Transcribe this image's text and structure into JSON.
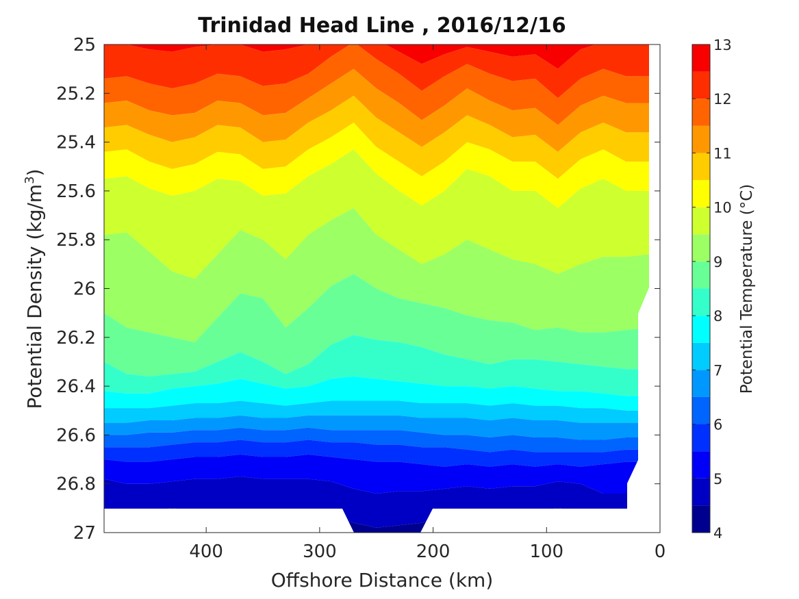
{
  "chart_data": {
    "type": "contour",
    "title": "Trinidad Head Line , 2016/12/16",
    "xlabel": "Offshore Distance (km)",
    "ylabel": "Potential Density (kg/m³)",
    "ylabel_main": "Potential Density (kg/m",
    "ylabel_sup": "3",
    "ylabel_end": ")",
    "xlim": [
      490,
      0
    ],
    "ylim": [
      25,
      27
    ],
    "y_reversed": true,
    "x_ticks": [
      400,
      300,
      200,
      100,
      0
    ],
    "x_tick_labels": [
      "400",
      "300",
      "200",
      "100",
      "0"
    ],
    "y_ticks": [
      25,
      25.2,
      25.4,
      25.6,
      25.8,
      26,
      26.2,
      26.4,
      26.6,
      26.8,
      27
    ],
    "y_tick_labels": [
      "25",
      "25.2",
      "25.4",
      "25.6",
      "25.8",
      "26",
      "26.2",
      "26.4",
      "26.6",
      "26.8",
      "27"
    ],
    "colorbar": {
      "label": "Potential Temperature (°C)",
      "range": [
        4,
        13
      ],
      "ticks": [
        4,
        5,
        6,
        7,
        8,
        9,
        10,
        11,
        12,
        13
      ],
      "tick_labels": [
        "4",
        "5",
        "6",
        "7",
        "8",
        "9",
        "10",
        "11",
        "12",
        "13"
      ],
      "levels": [
        4,
        4.5,
        5,
        5.5,
        6,
        6.5,
        7,
        7.5,
        8,
        8.5,
        9,
        9.5,
        10,
        10.5,
        11,
        11.5,
        12,
        12.5,
        13
      ],
      "colors": [
        "#00008f",
        "#0000c4",
        "#0000f8",
        "#0030ff",
        "#0064ff",
        "#0098ff",
        "#00ccff",
        "#00ffff",
        "#34ffcb",
        "#68ff97",
        "#9cff63",
        "#ceff2f",
        "#ffff00",
        "#ffcc00",
        "#ff9800",
        "#ff6400",
        "#ff2e00",
        "#f80000",
        "#c40000"
      ]
    },
    "x": [
      490,
      470,
      450,
      430,
      410,
      390,
      370,
      350,
      330,
      310,
      290,
      270,
      250,
      230,
      210,
      190,
      170,
      150,
      130,
      110,
      90,
      70,
      50,
      30,
      10
    ],
    "isopycnals_of_isotherms": [
      {
        "temp": 12.5,
        "density": [
          25.0,
          25.0,
          25.02,
          25.03,
          25.01,
          25.0,
          25.0,
          25.03,
          25.02,
          25.0,
          24.98,
          24.96,
          24.98,
          25.03,
          25.08,
          25.04,
          25.01,
          25.03,
          25.05,
          25.04,
          25.1,
          25.02,
          24.99,
          24.98,
          24.98
        ]
      },
      {
        "temp": 12.0,
        "density": [
          25.14,
          25.13,
          25.16,
          25.18,
          25.16,
          25.12,
          25.13,
          25.17,
          25.16,
          25.12,
          25.05,
          24.99,
          25.06,
          25.12,
          25.19,
          25.13,
          25.08,
          25.12,
          25.15,
          25.14,
          25.22,
          25.14,
          25.1,
          25.13,
          25.13
        ]
      },
      {
        "temp": 11.5,
        "density": [
          25.24,
          25.23,
          25.27,
          25.29,
          25.28,
          25.23,
          25.24,
          25.29,
          25.28,
          25.22,
          25.16,
          25.1,
          25.18,
          25.24,
          25.31,
          25.25,
          25.18,
          25.23,
          25.27,
          25.26,
          25.33,
          25.25,
          25.21,
          25.24,
          25.24
        ]
      },
      {
        "temp": 11.0,
        "density": [
          25.34,
          25.33,
          25.37,
          25.4,
          25.38,
          25.33,
          25.34,
          25.4,
          25.39,
          25.32,
          25.27,
          25.21,
          25.3,
          25.36,
          25.42,
          25.36,
          25.29,
          25.33,
          25.38,
          25.37,
          25.44,
          25.36,
          25.32,
          25.36,
          25.36
        ]
      },
      {
        "temp": 10.5,
        "density": [
          25.44,
          25.43,
          25.48,
          25.51,
          25.49,
          25.44,
          25.45,
          25.51,
          25.5,
          25.43,
          25.38,
          25.32,
          25.42,
          25.48,
          25.54,
          25.48,
          25.4,
          25.43,
          25.48,
          25.48,
          25.55,
          25.47,
          25.43,
          25.48,
          25.48
        ]
      },
      {
        "temp": 10.0,
        "density": [
          25.55,
          25.54,
          25.59,
          25.62,
          25.6,
          25.55,
          25.56,
          25.62,
          25.61,
          25.54,
          25.49,
          25.43,
          25.53,
          25.6,
          25.66,
          25.6,
          25.51,
          25.54,
          25.6,
          25.6,
          25.67,
          25.59,
          25.55,
          25.6,
          25.6
        ]
      },
      {
        "temp": 9.5,
        "density": [
          25.78,
          25.77,
          25.85,
          25.93,
          25.96,
          25.86,
          25.76,
          25.8,
          25.88,
          25.78,
          25.72,
          25.67,
          25.78,
          25.84,
          25.9,
          25.86,
          25.8,
          25.84,
          25.88,
          25.9,
          25.94,
          25.9,
          25.87,
          25.87,
          25.86
        ]
      },
      {
        "temp": 9.0,
        "density": [
          26.1,
          26.16,
          26.18,
          26.2,
          26.22,
          26.12,
          26.02,
          26.04,
          26.16,
          26.08,
          25.99,
          25.94,
          26.0,
          26.04,
          26.06,
          26.08,
          26.11,
          26.13,
          26.14,
          26.17,
          26.16,
          26.18,
          26.18,
          26.17,
          26.16
        ]
      },
      {
        "temp": 8.5,
        "density": [
          26.3,
          26.35,
          26.36,
          26.35,
          26.34,
          26.3,
          26.26,
          26.3,
          26.35,
          26.31,
          26.23,
          26.19,
          26.21,
          26.22,
          26.24,
          26.27,
          26.29,
          26.31,
          26.29,
          26.29,
          26.3,
          26.31,
          26.32,
          26.33,
          26.33
        ]
      },
      {
        "temp": 8.0,
        "density": [
          26.42,
          26.43,
          26.43,
          26.41,
          26.4,
          26.39,
          26.37,
          26.39,
          26.41,
          26.4,
          26.37,
          26.36,
          26.37,
          26.38,
          26.39,
          26.4,
          26.4,
          26.41,
          26.4,
          26.41,
          26.42,
          26.42,
          26.43,
          26.44,
          26.44
        ]
      },
      {
        "temp": 7.5,
        "density": [
          26.49,
          26.49,
          26.49,
          26.48,
          26.47,
          26.47,
          26.46,
          26.47,
          26.48,
          26.47,
          26.46,
          26.46,
          26.46,
          26.46,
          26.47,
          26.47,
          26.47,
          26.48,
          26.47,
          26.48,
          26.48,
          26.49,
          26.49,
          26.5,
          26.5
        ]
      },
      {
        "temp": 7.0,
        "density": [
          26.55,
          26.55,
          26.54,
          26.54,
          26.53,
          26.53,
          26.52,
          26.53,
          26.53,
          26.52,
          26.52,
          26.52,
          26.52,
          26.52,
          26.53,
          26.53,
          26.53,
          26.54,
          26.53,
          26.54,
          26.54,
          26.55,
          26.55,
          26.55,
          26.55
        ]
      },
      {
        "temp": 6.5,
        "density": [
          26.6,
          26.6,
          26.59,
          26.59,
          26.58,
          26.58,
          26.57,
          26.58,
          26.58,
          26.57,
          26.58,
          26.58,
          26.58,
          26.58,
          26.59,
          26.6,
          26.6,
          26.61,
          26.6,
          26.61,
          26.61,
          26.62,
          26.62,
          26.61,
          26.61
        ]
      },
      {
        "temp": 6.0,
        "density": [
          26.65,
          26.65,
          26.65,
          26.64,
          26.63,
          26.63,
          26.62,
          26.63,
          26.63,
          26.62,
          26.63,
          26.63,
          26.64,
          26.64,
          26.65,
          26.65,
          26.66,
          26.67,
          26.66,
          26.67,
          26.67,
          26.67,
          26.67,
          26.66,
          26.66
        ]
      },
      {
        "temp": 5.5,
        "density": [
          26.7,
          26.71,
          26.71,
          26.7,
          26.69,
          26.69,
          26.68,
          26.69,
          26.69,
          26.68,
          26.69,
          26.7,
          26.71,
          26.71,
          26.72,
          26.73,
          26.72,
          26.73,
          26.72,
          26.73,
          26.72,
          26.73,
          26.72,
          26.71,
          26.71
        ]
      },
      {
        "temp": 5.0,
        "density": [
          26.78,
          26.8,
          26.8,
          26.79,
          26.78,
          26.78,
          26.77,
          26.78,
          26.78,
          26.78,
          26.79,
          26.82,
          26.84,
          26.83,
          26.83,
          26.82,
          26.81,
          26.82,
          26.81,
          26.81,
          26.79,
          26.8,
          26.84,
          26.84,
          26.84
        ]
      },
      {
        "temp": 4.5,
        "density": [
          26.91,
          26.91,
          26.91,
          26.9,
          26.91,
          26.91,
          26.91,
          26.91,
          26.91,
          26.92,
          26.93,
          26.96,
          26.98,
          26.97,
          26.96,
          26.92,
          26.91,
          26.91,
          26.91,
          26.91,
          26.9,
          26.91,
          26.91,
          26.92,
          26.92
        ]
      }
    ],
    "no_data_region": "bottom and right edge blanked"
  }
}
